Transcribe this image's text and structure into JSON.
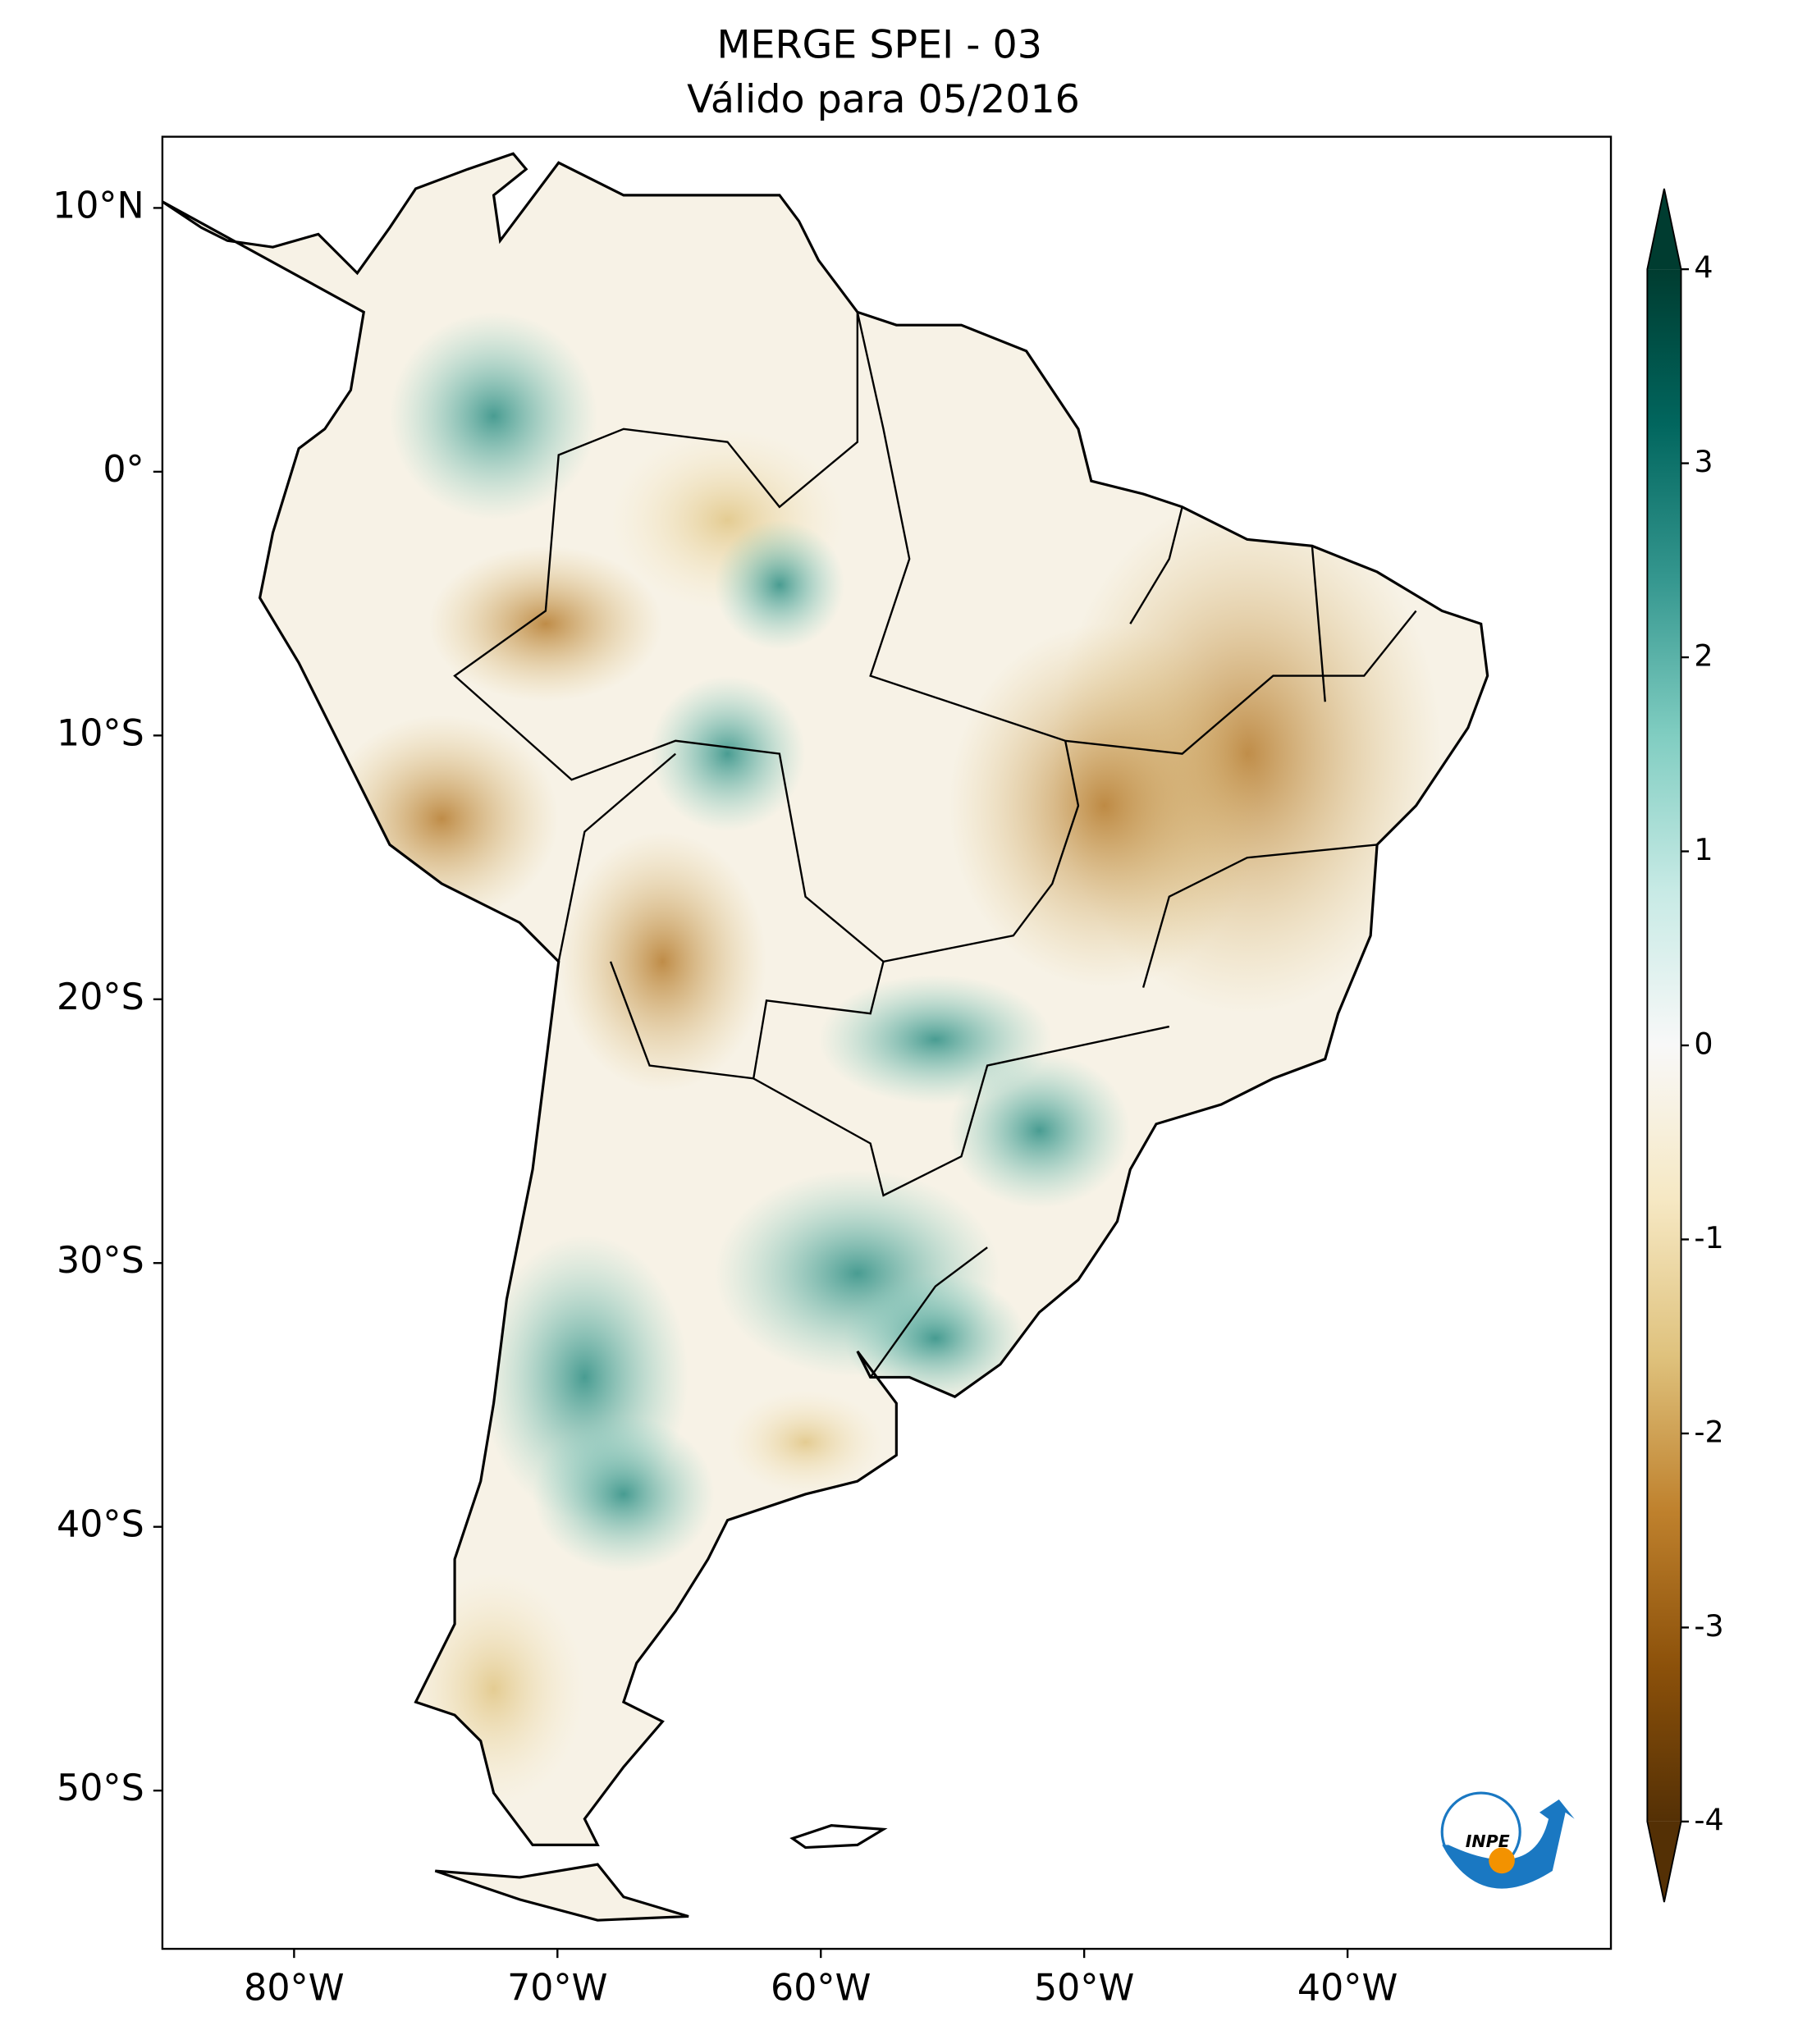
{
  "chart_data": {
    "type": "map",
    "title": "MERGE   SPEI - 03",
    "subtitle": "Válido para 05/2016",
    "xlim": [
      -85,
      -30
    ],
    "ylim": [
      -56,
      12.7
    ],
    "xticks": [
      {
        "value": -80,
        "label": "80°W"
      },
      {
        "value": -70,
        "label": "70°W"
      },
      {
        "value": -60,
        "label": "60°W"
      },
      {
        "value": -50,
        "label": "50°W"
      },
      {
        "value": -40,
        "label": "40°W"
      }
    ],
    "yticks": [
      {
        "value": 10,
        "label": "10°N"
      },
      {
        "value": 0,
        "label": "0°"
      },
      {
        "value": -10,
        "label": "10°S"
      },
      {
        "value": -20,
        "label": "20°S"
      },
      {
        "value": -30,
        "label": "30°S"
      },
      {
        "value": -40,
        "label": "40°S"
      },
      {
        "value": -50,
        "label": "50°S"
      }
    ],
    "colorbar": {
      "lim": [
        -4,
        4
      ],
      "ticks": [
        4,
        3,
        2,
        1,
        0,
        -1,
        -2,
        -3,
        -4
      ],
      "colors": [
        "#543005",
        "#8c510a",
        "#bf812d",
        "#dfc27d",
        "#f6e8c3",
        "#f8f8f8",
        "#c7eae5",
        "#80cdc1",
        "#35978f",
        "#01665e",
        "#003c30"
      ]
    },
    "logo": "INPE"
  }
}
